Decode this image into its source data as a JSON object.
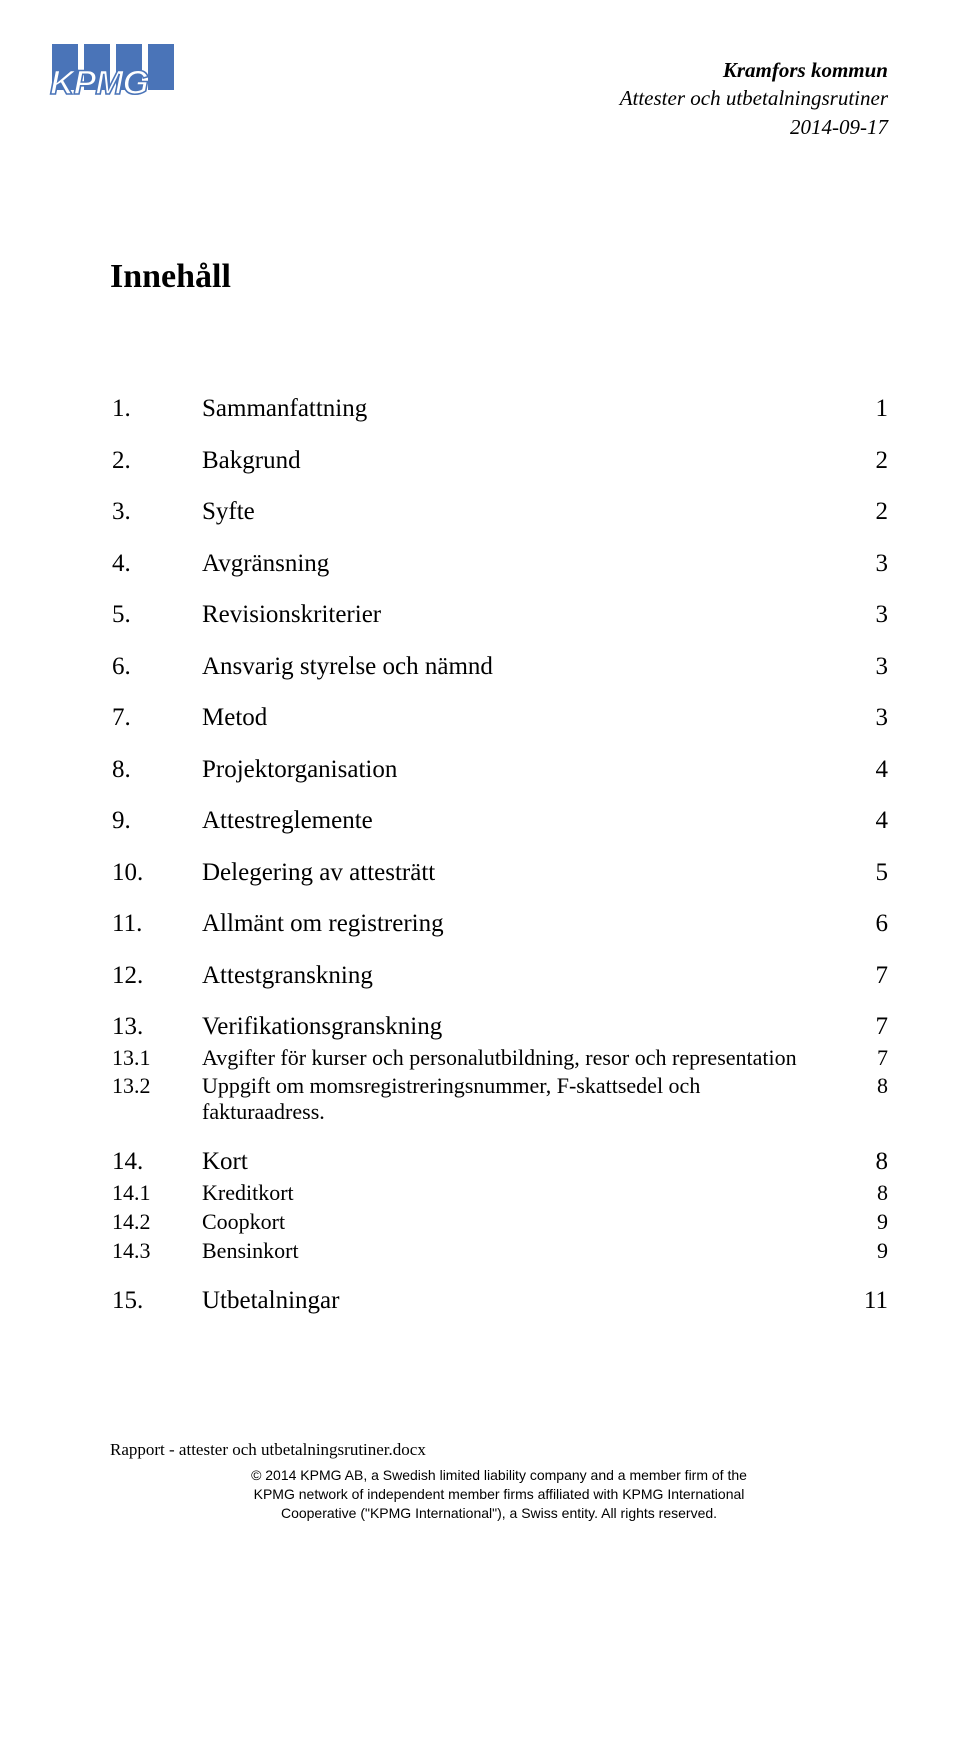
{
  "logo": {
    "text": "KPMG"
  },
  "header": {
    "org": "Kramfors kommun",
    "subtitle": "Attester och utbetalningsrutiner",
    "date": "2014-09-17"
  },
  "heading": "Innehåll",
  "toc": [
    {
      "level": 1,
      "num": "1.",
      "title": "Sammanfattning",
      "page": "1"
    },
    {
      "level": 1,
      "num": "2.",
      "title": "Bakgrund",
      "page": "2"
    },
    {
      "level": 1,
      "num": "3.",
      "title": "Syfte",
      "page": "2"
    },
    {
      "level": 1,
      "num": "4.",
      "title": "Avgränsning",
      "page": "3"
    },
    {
      "level": 1,
      "num": "5.",
      "title": "Revisionskriterier",
      "page": "3"
    },
    {
      "level": 1,
      "num": "6.",
      "title": "Ansvarig styrelse och nämnd",
      "page": "3"
    },
    {
      "level": 1,
      "num": "7.",
      "title": "Metod",
      "page": "3"
    },
    {
      "level": 1,
      "num": "8.",
      "title": "Projektorganisation",
      "page": "4"
    },
    {
      "level": 1,
      "num": "9.",
      "title": "Attestreglemente",
      "page": "4"
    },
    {
      "level": 1,
      "num": "10.",
      "title": "Delegering av attesträtt",
      "page": "5"
    },
    {
      "level": 1,
      "num": "11.",
      "title": "Allmänt om registrering",
      "page": "6"
    },
    {
      "level": 1,
      "num": "12.",
      "title": "Attestgranskning",
      "page": "7"
    },
    {
      "level": 1,
      "num": "13.",
      "title": "Verifikationsgranskning",
      "page": "7"
    },
    {
      "level": 2,
      "num": "13.1",
      "title": "Avgifter för kurser och personalutbildning, resor och representation",
      "page": "7"
    },
    {
      "level": 2,
      "num": "13.2",
      "title": "Uppgift om momsregistreringsnummer, F-skattsedel och fakturaadress.",
      "page": "8"
    },
    {
      "level": 1,
      "num": "14.",
      "title": "Kort",
      "page": "8"
    },
    {
      "level": 2,
      "num": "14.1",
      "title": "Kreditkort",
      "page": "8"
    },
    {
      "level": 2,
      "num": "14.2",
      "title": "Coopkort",
      "page": "9"
    },
    {
      "level": 2,
      "num": "14.3",
      "title": "Bensinkort",
      "page": "9"
    },
    {
      "level": 1,
      "num": "15.",
      "title": "Utbetalningar",
      "page": "11"
    }
  ],
  "footer": {
    "filename": "Rapport - attester och utbetalningsrutiner.docx",
    "copyright_line1": "© 2014 KPMG AB, a Swedish limited liability company and a member firm of the",
    "copyright_line2": "KPMG network of independent member firms affiliated with KPMG International",
    "copyright_line3": "Cooperative (\"KPMG International\"), a Swiss entity. All rights reserved."
  }
}
